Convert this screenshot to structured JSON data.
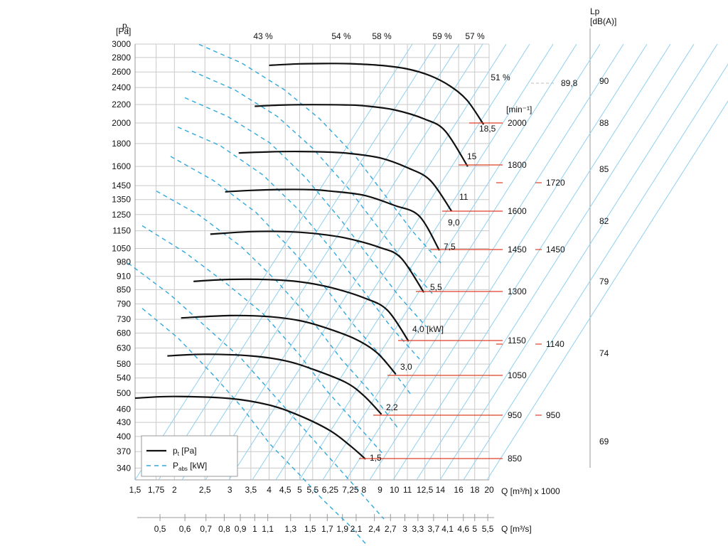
{
  "chart_data": {
    "type": "line",
    "title": "",
    "ylabel": "p",
    "ylabel_sub": "t",
    "yunit": "[Pa]",
    "xlabel_m3h": "Q [m³/h] x 1000",
    "xlabel_m3s": "Q [m³/s]",
    "y_ticks": [
      340,
      370,
      400,
      430,
      460,
      500,
      540,
      580,
      630,
      680,
      730,
      790,
      850,
      910,
      980,
      1050,
      1150,
      1250,
      1350,
      1450,
      1600,
      1800,
      2000,
      2200,
      2400,
      2600,
      2800,
      3000
    ],
    "x_ticks_m3h": [
      "1,5",
      "1,75",
      "2",
      "2,5",
      "3",
      "3,5",
      "4",
      "4,5",
      "5",
      "5,5",
      "6,25",
      "7,25",
      "8",
      "9",
      "10",
      "11",
      "12,5",
      "14",
      "16",
      "18",
      "20"
    ],
    "x_ticks_m3s": [
      "0,5",
      "0,6",
      "0,7",
      "0,8",
      "0,9",
      "1",
      "1,1",
      "1,3",
      "1,5",
      "1,7",
      "1,9",
      "2,1",
      "2,4",
      "2,7",
      "3",
      "3,3",
      "3,7",
      "4,1",
      "4,6",
      "5",
      "5,5"
    ],
    "efficiency_labels": [
      "43 %",
      "54 %",
      "58 %",
      "59 %",
      "57 %",
      "51 %"
    ],
    "speed_unit": "[min⁻¹]",
    "lp_label": "Lp",
    "lp_unit": "[dB(A)]",
    "lp_ticks": [
      "90",
      "88",
      "85",
      "82",
      "79",
      "74",
      "69"
    ],
    "lp_extra": "89,8",
    "legend": [
      {
        "label": "p",
        "sub": "t",
        "suffix": " [Pa]",
        "style": "solid"
      },
      {
        "label": "P",
        "sub": "abs",
        "suffix": " [kW]",
        "style": "dashed"
      }
    ],
    "series": [
      {
        "rpm": "850",
        "power": "1,5",
        "x": [
          1.5,
          2,
          3,
          4,
          5,
          6.25,
          7.25,
          8.1
        ],
        "y": [
          487,
          491,
          486,
          470,
          445,
          412,
          381,
          356
        ]
      },
      {
        "rpm": "950",
        "power": "2,2",
        "x": [
          1.9,
          2.5,
          3.5,
          4.5,
          5.5,
          7,
          8,
          9.1
        ],
        "y": [
          605,
          610,
          605,
          590,
          565,
          528,
          493,
          448
        ]
      },
      {
        "rpm": "1050",
        "power": "3,0",
        "x": [
          2.1,
          3,
          4,
          5,
          6,
          7.5,
          8.8,
          10.1
        ],
        "y": [
          735,
          744,
          740,
          725,
          700,
          660,
          615,
          551
        ]
      },
      {
        "rpm": "1150",
        "power": "4,0 [kW]",
        "x": [
          2.3,
          3,
          4,
          5,
          6.25,
          8,
          9.5,
          11.1
        ],
        "y": [
          887,
          896,
          895,
          885,
          860,
          815,
          765,
          652
        ]
      },
      {
        "rpm": "1300",
        "power": "5,5",
        "x": [
          2.6,
          3.5,
          4.5,
          5.5,
          7,
          9,
          10.5,
          12.4
        ],
        "y": [
          1130,
          1145,
          1145,
          1135,
          1108,
          1055,
          1000,
          838
        ]
      },
      {
        "rpm": "1450",
        "power": "7,5",
        "x": [
          2.9,
          3.5,
          4.5,
          5.5,
          6.25,
          8,
          10,
          12,
          13.9
        ],
        "y": [
          1405,
          1415,
          1422,
          1420,
          1410,
          1380,
          1310,
          1240,
          1040
        ]
      },
      {
        "rpm": "1600",
        "power": "9,0",
        "x": [
          3.2,
          4,
          5,
          6.25,
          7.25,
          9,
          11,
          13,
          15.2
        ],
        "y": [
          1715,
          1725,
          1728,
          1722,
          1710,
          1672,
          1590,
          1490,
          1272
        ]
      },
      {
        "rpm": "1800",
        "power": "15",
        "x": [
          3.6,
          4.5,
          5.5,
          7,
          8,
          10,
          12.5,
          14.5,
          17.1
        ],
        "y": [
          2180,
          2195,
          2198,
          2195,
          2185,
          2140,
          2040,
          1920,
          1600
        ]
      },
      {
        "rpm": "2000",
        "power": "18,5",
        "x": [
          4,
          5,
          6.25,
          7.25,
          9,
          11,
          13,
          15,
          17,
          19.2
        ],
        "y": [
          2690,
          2710,
          2715,
          2712,
          2690,
          2640,
          2550,
          2420,
          2250,
          1985
        ]
      }
    ],
    "speed_labels_right": [
      "2000",
      "1800",
      "1600",
      "1450",
      "1300",
      "1150",
      "1050",
      "950",
      "850"
    ],
    "speed_labels_far": [
      "1720",
      "1450",
      "1140",
      "950"
    ],
    "power_labels": [
      "18,5",
      "15",
      "11",
      "9,0",
      "7,5",
      "5,5",
      "4,0 [kW]",
      "3,0",
      "2,2",
      "1,5"
    ],
    "colors": {
      "curve": "#111111",
      "power": "#31a8dc",
      "diagonal": "#8fd0ee",
      "speed_line": "#e0402a",
      "grid": "#c9c9c9"
    }
  }
}
